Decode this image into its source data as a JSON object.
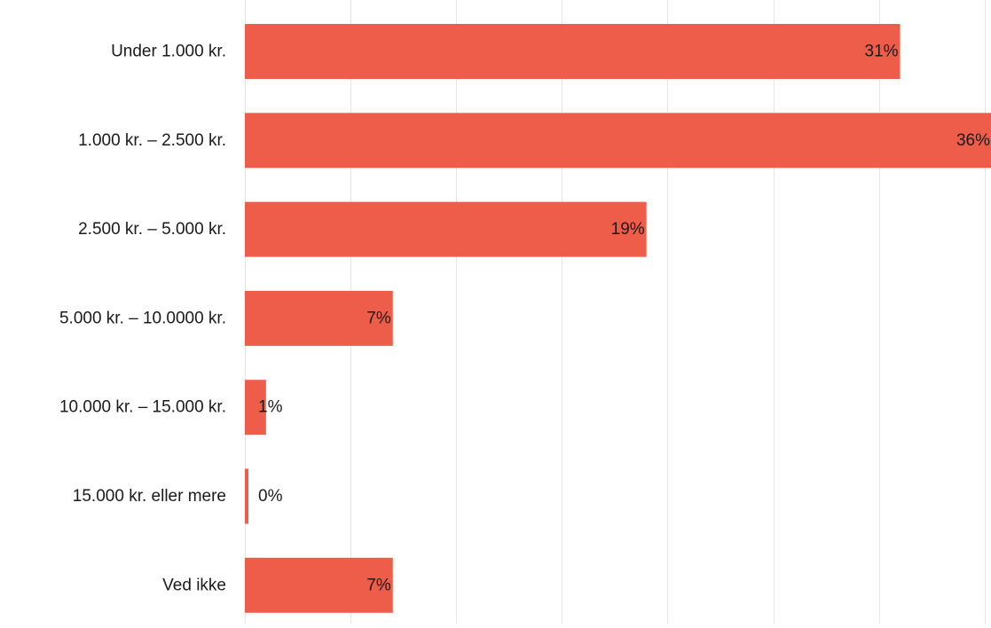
{
  "chart_data": {
    "type": "bar",
    "orientation": "horizontal",
    "categories": [
      "Under 1.000 kr.",
      "1.000 kr. – 2.500 kr.",
      "2.500 kr. – 5.000 kr.",
      "5.000 kr. – 10.0000 kr.",
      "10.000 kr. – 15.000 kr.",
      "15.000 kr. eller mere",
      "Ved ikke"
    ],
    "values": [
      31,
      36,
      19,
      7,
      1,
      0,
      7
    ],
    "value_labels": [
      "31%",
      "36%",
      "19%",
      "7%",
      "1%",
      "0%",
      "7%"
    ],
    "unit": "%",
    "xlim": [
      0,
      35.3
    ],
    "grid": true,
    "bar_color": "#EE5D4A",
    "grid_color": "#e6e6e6",
    "title": "",
    "xlabel": "",
    "ylabel": ""
  }
}
